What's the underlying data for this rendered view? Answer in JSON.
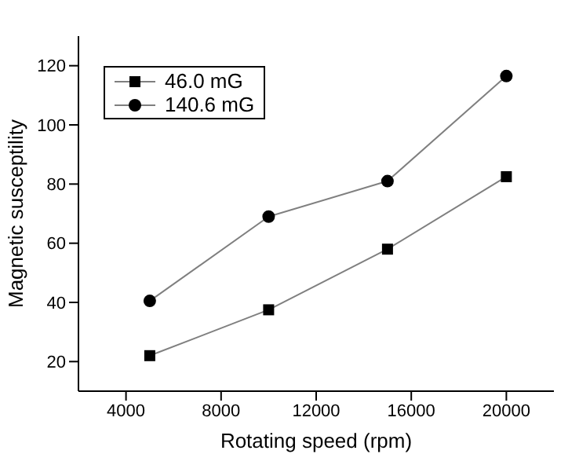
{
  "chart_data": {
    "type": "line",
    "xlabel": "Rotating speed (rpm)",
    "ylabel": "Magnetic susceptility",
    "x": [
      5000,
      10000,
      15000,
      20000
    ],
    "series": [
      {
        "name": "46.0 mG",
        "color": "#000000",
        "marker": "square",
        "values": [
          22,
          37.5,
          58,
          82.5
        ]
      },
      {
        "name": "140.6 mG",
        "color": "#000000",
        "marker": "circle",
        "values": [
          40.5,
          69,
          81,
          116.5
        ]
      }
    ],
    "xlim": [
      2000,
      22000
    ],
    "xticks": [
      4000,
      8000,
      12000,
      16000,
      20000
    ],
    "ylim": [
      10,
      130
    ],
    "yticks": [
      20,
      40,
      60,
      80,
      100,
      120
    ],
    "legend": "top left",
    "line_style": "solid"
  }
}
